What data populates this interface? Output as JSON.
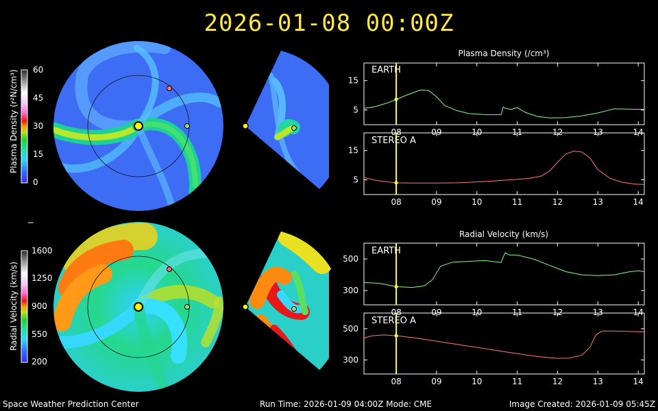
{
  "header": {
    "timestamp": "2026-01-08  00:00Z"
  },
  "footer": {
    "left": "Space Weather Prediction Center",
    "center": "Run Time: 2026-01-09 04:00Z  Mode: CME",
    "right": "Image Created: 2026-01-09 05:45Z"
  },
  "colorbars": {
    "density": {
      "label": "Plasma Density (r²N/cm³)",
      "ticks": [
        "60",
        "45",
        "30",
        "15",
        "0"
      ]
    },
    "velocity": {
      "label": "Radial Velocity (km/s)",
      "ticks": [
        "1600",
        "1250",
        "900",
        "550",
        "200"
      ]
    }
  },
  "colors": {
    "title": "#ffe94a",
    "earth_trace": "#7dff7d",
    "stereo_trace": "#ff7a70",
    "time_marker": "#ffff4a",
    "earth_marker": "#a0e070",
    "stereo_marker": "#ff6d6d",
    "sun": "#ffff00"
  },
  "chart_data": [
    {
      "type": "line",
      "title": "Plasma Density (/cm³)",
      "panel": "EARTH",
      "ylim": [
        0,
        21
      ],
      "yticks": [
        5,
        15
      ],
      "xlim": [
        7.2,
        14.15
      ],
      "xticks": [
        "08",
        "09",
        "10",
        "11",
        "12",
        "13",
        "14"
      ],
      "current_time": 8.0,
      "series": [
        {
          "x": [
            7.2,
            7.5,
            7.8,
            8.0,
            8.3,
            8.6,
            8.8,
            9.0,
            9.2,
            9.5,
            9.8,
            10.2,
            10.6,
            10.65,
            10.7,
            10.85,
            11.0,
            11.2,
            11.5,
            11.8,
            12.2,
            12.6,
            13.0,
            13.4,
            13.7,
            14.15
          ],
          "y": [
            5.5,
            6.2,
            7.5,
            8.6,
            10.3,
            11.8,
            11.7,
            9.5,
            6.5,
            4.8,
            3.8,
            3.4,
            3.4,
            6.0,
            5.6,
            5.2,
            5.8,
            4.2,
            2.8,
            2.3,
            2.4,
            3.0,
            4.0,
            5.4,
            5.3,
            5.2
          ]
        }
      ]
    },
    {
      "type": "line",
      "panel": "STEREO A",
      "ylim": [
        0,
        21
      ],
      "yticks": [
        5,
        15
      ],
      "xlim": [
        7.2,
        14.15
      ],
      "xticks": [
        "08",
        "09",
        "10",
        "11",
        "12",
        "13",
        "14"
      ],
      "current_time": 8.0,
      "series": [
        {
          "x": [
            7.2,
            7.5,
            7.8,
            8.0,
            8.5,
            9.0,
            9.5,
            10.0,
            10.5,
            11.0,
            11.3,
            11.6,
            11.8,
            12.0,
            12.2,
            12.4,
            12.6,
            12.8,
            13.0,
            13.3,
            13.6,
            13.9,
            14.15
          ],
          "y": [
            5.8,
            4.8,
            4.3,
            4.0,
            3.9,
            3.9,
            4.0,
            4.3,
            4.7,
            5.2,
            5.5,
            6.3,
            8.0,
            11.0,
            13.8,
            14.8,
            14.5,
            12.5,
            8.5,
            5.5,
            4.2,
            3.6,
            3.4
          ]
        }
      ]
    },
    {
      "type": "line",
      "title": "Radial Velocity (km/s)",
      "panel": "EARTH",
      "ylim": [
        210,
        600
      ],
      "yticks": [
        300,
        500
      ],
      "xlim": [
        7.2,
        14.15
      ],
      "xticks": [
        "08",
        "09",
        "10",
        "11",
        "12",
        "13",
        "14"
      ],
      "current_time": 8.0,
      "series": [
        {
          "x": [
            7.2,
            7.6,
            8.0,
            8.4,
            8.7,
            8.9,
            9.1,
            9.4,
            9.8,
            10.2,
            10.6,
            10.65,
            10.7,
            10.8,
            11.0,
            11.4,
            11.8,
            12.2,
            12.6,
            13.0,
            13.4,
            13.8,
            14.0,
            14.15
          ],
          "y": [
            352,
            345,
            325,
            320,
            330,
            370,
            455,
            480,
            485,
            490,
            478,
            510,
            540,
            525,
            525,
            500,
            460,
            420,
            400,
            395,
            400,
            420,
            425,
            420
          ]
        }
      ]
    },
    {
      "type": "line",
      "panel": "STEREO A",
      "ylim": [
        210,
        600
      ],
      "yticks": [
        300,
        500
      ],
      "xlim": [
        7.2,
        14.15
      ],
      "xticks": [
        "08",
        "09",
        "10",
        "11",
        "12",
        "13",
        "14"
      ],
      "current_time": 8.0,
      "series": [
        {
          "x": [
            7.2,
            7.4,
            7.7,
            8.0,
            8.5,
            9.0,
            9.5,
            10.0,
            10.5,
            11.0,
            11.5,
            12.0,
            12.3,
            12.6,
            12.8,
            12.95,
            13.1,
            13.4,
            13.8,
            14.15
          ],
          "y": [
            440,
            455,
            460,
            455,
            440,
            420,
            400,
            380,
            360,
            340,
            322,
            310,
            312,
            330,
            380,
            460,
            485,
            485,
            482,
            480
          ]
        }
      ]
    }
  ]
}
